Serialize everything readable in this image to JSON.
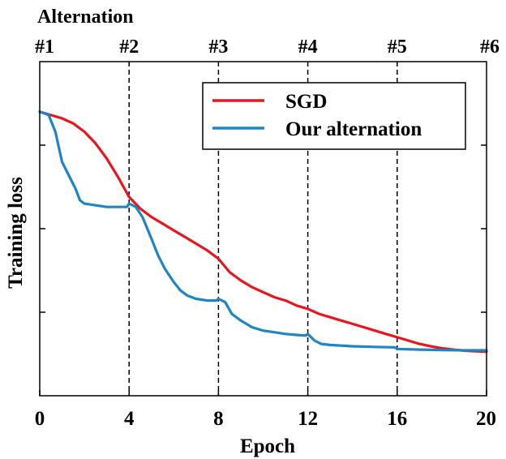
{
  "chart_data": {
    "type": "line",
    "title": "",
    "xlabel": "Epoch",
    "ylabel": "Training loss",
    "xlim": [
      0,
      20
    ],
    "ylim": [
      0,
      1
    ],
    "x_ticks": [
      "0",
      "4",
      "8",
      "12",
      "16",
      "20"
    ],
    "x_tick_values": [
      0,
      4,
      8,
      12,
      16,
      20
    ],
    "y_ticks": [],
    "top_axis": {
      "label": "Alternation",
      "ticks": [
        "#1",
        "#2",
        "#3",
        "#4",
        "#5",
        "#6"
      ],
      "tick_values": [
        0,
        4,
        8,
        12,
        16,
        20
      ]
    },
    "vlines": [
      4,
      8,
      12,
      16
    ],
    "grid": false,
    "legend_position": "top-right",
    "series": [
      {
        "name": "SGD",
        "color": "#e8161e",
        "x": [
          0,
          0.5,
          1,
          1.5,
          2,
          2.5,
          3,
          3.5,
          4,
          4.5,
          5,
          5.5,
          6,
          6.5,
          7,
          7.5,
          8,
          8.5,
          9,
          9.5,
          10,
          10.5,
          11,
          11.5,
          12,
          12.5,
          13,
          13.5,
          14,
          14.5,
          15,
          15.5,
          16,
          16.5,
          17,
          17.5,
          18,
          18.5,
          19,
          19.5,
          20
        ],
        "y": [
          0.85,
          0.84,
          0.83,
          0.815,
          0.79,
          0.755,
          0.71,
          0.655,
          0.595,
          0.56,
          0.535,
          0.515,
          0.495,
          0.475,
          0.455,
          0.435,
          0.41,
          0.37,
          0.345,
          0.325,
          0.31,
          0.295,
          0.285,
          0.27,
          0.26,
          0.245,
          0.235,
          0.225,
          0.215,
          0.205,
          0.195,
          0.185,
          0.175,
          0.165,
          0.155,
          0.148,
          0.142,
          0.138,
          0.135,
          0.133,
          0.132
        ]
      },
      {
        "name": "Our alternation",
        "color": "#1f85c4",
        "x": [
          0,
          0.4,
          0.7,
          1,
          1.3,
          1.6,
          1.8,
          2,
          2.5,
          3,
          3.5,
          3.9,
          4,
          4.3,
          4.6,
          5,
          5.3,
          5.6,
          6,
          6.3,
          6.6,
          7,
          7.5,
          7.9,
          8,
          8.3,
          8.6,
          9,
          9.5,
          10,
          10.5,
          11,
          11.5,
          11.9,
          12,
          12.3,
          12.6,
          13,
          14,
          15,
          15.9,
          16,
          17,
          18,
          19,
          20
        ],
        "y": [
          0.85,
          0.84,
          0.79,
          0.7,
          0.66,
          0.62,
          0.585,
          0.575,
          0.57,
          0.565,
          0.565,
          0.565,
          0.575,
          0.565,
          0.535,
          0.47,
          0.42,
          0.38,
          0.34,
          0.315,
          0.3,
          0.29,
          0.285,
          0.285,
          0.29,
          0.28,
          0.245,
          0.225,
          0.205,
          0.195,
          0.19,
          0.185,
          0.182,
          0.18,
          0.185,
          0.165,
          0.155,
          0.152,
          0.148,
          0.146,
          0.145,
          0.14,
          0.138,
          0.137,
          0.136,
          0.136
        ]
      }
    ]
  }
}
